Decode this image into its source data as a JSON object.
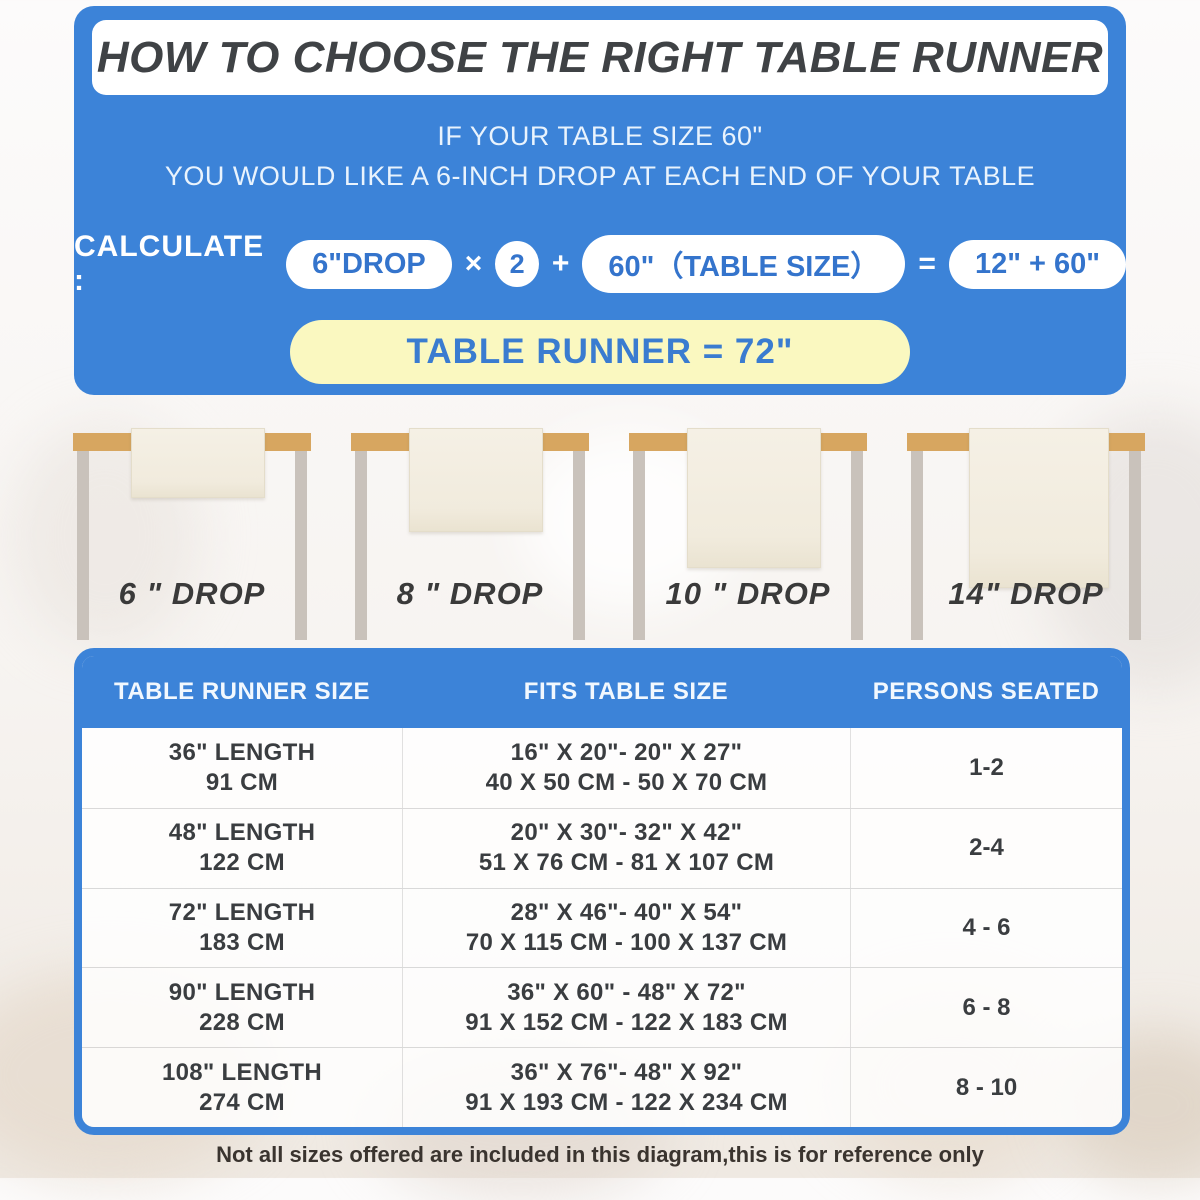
{
  "colors": {
    "panel_blue": "#3c83d8",
    "pill_text_blue": "#3474cc",
    "result_yellow": "#faf8c0",
    "tabletop_tan": "#d7a660",
    "leg_gray": "#c9c2bb",
    "runner_cream": "#f1ebdd",
    "text_dark": "#3a3d40"
  },
  "header": {
    "title": "HOW TO CHOOSE THE RIGHT TABLE RUNNER",
    "subtitle_line1": "IF YOUR TABLE SIZE 60\"",
    "subtitle_line2": "YOU WOULD LIKE A 6-INCH DROP AT EACH END OF YOUR TABLE",
    "calculate": {
      "label": "CALCULATE :",
      "drop_pill": "6\"DROP",
      "times": "×",
      "multiplier": "2",
      "plus": "+",
      "table_size_pill": "60\"（TABLE SIZE）",
      "equals": "=",
      "result_pill": "12\" + 60\"",
      "final": "TABLE RUNNER = 72\""
    }
  },
  "drops": [
    {
      "label": "6 \" DROP"
    },
    {
      "label": "8 \" DROP"
    },
    {
      "label": "10 \" DROP"
    },
    {
      "label": "14\" DROP"
    }
  ],
  "size_table": {
    "columns": [
      "TABLE RUNNER SIZE",
      "FITS TABLE SIZE",
      "PERSONS SEATED"
    ],
    "rows": [
      {
        "size_in": "36\" LENGTH",
        "size_cm": "91 CM",
        "fits_in": "16\" X 20\"- 20\" X 27\"",
        "fits_cm": "40 X 50 CM - 50 X 70 CM",
        "persons": "1-2"
      },
      {
        "size_in": "48\" LENGTH",
        "size_cm": "122 CM",
        "fits_in": "20\" X 30\"- 32\" X 42\"",
        "fits_cm": "51 X 76 CM - 81 X 107 CM",
        "persons": "2-4"
      },
      {
        "size_in": "72\" LENGTH",
        "size_cm": "183 CM",
        "fits_in": "28\" X 46\"- 40\" X 54\"",
        "fits_cm": "70 X 115 CM - 100 X 137 CM",
        "persons": "4 - 6"
      },
      {
        "size_in": "90\" LENGTH",
        "size_cm": "228 CM",
        "fits_in": "36\" X 60\" - 48\" X 72\"",
        "fits_cm": "91 X 152 CM - 122 X 183 CM",
        "persons": "6 - 8"
      },
      {
        "size_in": "108\" LENGTH",
        "size_cm": "274 CM",
        "fits_in": "36\" X 76\"- 48\" X 92\"",
        "fits_cm": "91 X 193 CM - 122 X 234 CM",
        "persons": "8 - 10"
      }
    ]
  },
  "footnote": "Not all sizes offered are included in this diagram,this is for reference only"
}
